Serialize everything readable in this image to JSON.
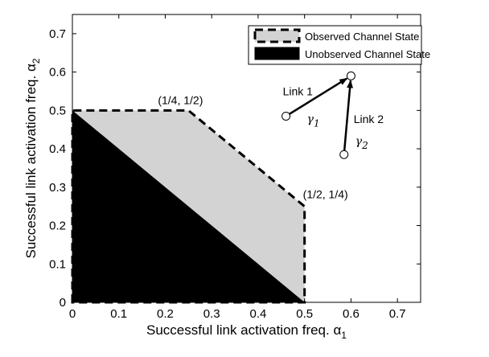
{
  "chart_data": {
    "type": "area",
    "xlabel": "Successful link activation freq. α",
    "xlabel_sub": "1",
    "ylabel": "Successful link activation freq. α",
    "ylabel_sub": "2",
    "xlim": [
      0,
      0.75
    ],
    "ylim": [
      0,
      0.75
    ],
    "xticks": [
      "0",
      "0.1",
      "0.2",
      "0.3",
      "0.4",
      "0.5",
      "0.6",
      "0.7"
    ],
    "yticks": [
      "0",
      "0.1",
      "0.2",
      "0.3",
      "0.4",
      "0.5",
      "0.6",
      "0.7"
    ],
    "grid": false,
    "legend_position": "top-right",
    "series": [
      {
        "name": "Observed Channel State",
        "fill_color": "#d3d3d3",
        "points": [
          [
            0,
            0
          ],
          [
            0,
            0.5
          ],
          [
            0.25,
            0.5
          ],
          [
            0.5,
            0.25
          ],
          [
            0.5,
            0
          ]
        ]
      },
      {
        "name": "Unobserved Channel State",
        "fill_color": "#000000",
        "points": [
          [
            0,
            0
          ],
          [
            0,
            0.5
          ],
          [
            0.5,
            0
          ],
          [
            0,
            0
          ]
        ]
      }
    ],
    "annotations": [
      {
        "text": "(1/4, 1/2)",
        "x": 0.25,
        "y": 0.5
      },
      {
        "text": "(1/2, 1/4)",
        "x": 0.5,
        "y": 0.25
      }
    ],
    "inset_diagram": {
      "link1_label": "Link 1",
      "link2_label": "Link 2",
      "gamma_symbol": "γ",
      "gamma1_sub": "1",
      "gamma2_sub": "2",
      "nodes": [
        {
          "id": "n1",
          "x": 0.46,
          "y": 0.485
        },
        {
          "id": "hub",
          "x": 0.6,
          "y": 0.59
        },
        {
          "id": "n2",
          "x": 0.585,
          "y": 0.385
        }
      ]
    }
  }
}
